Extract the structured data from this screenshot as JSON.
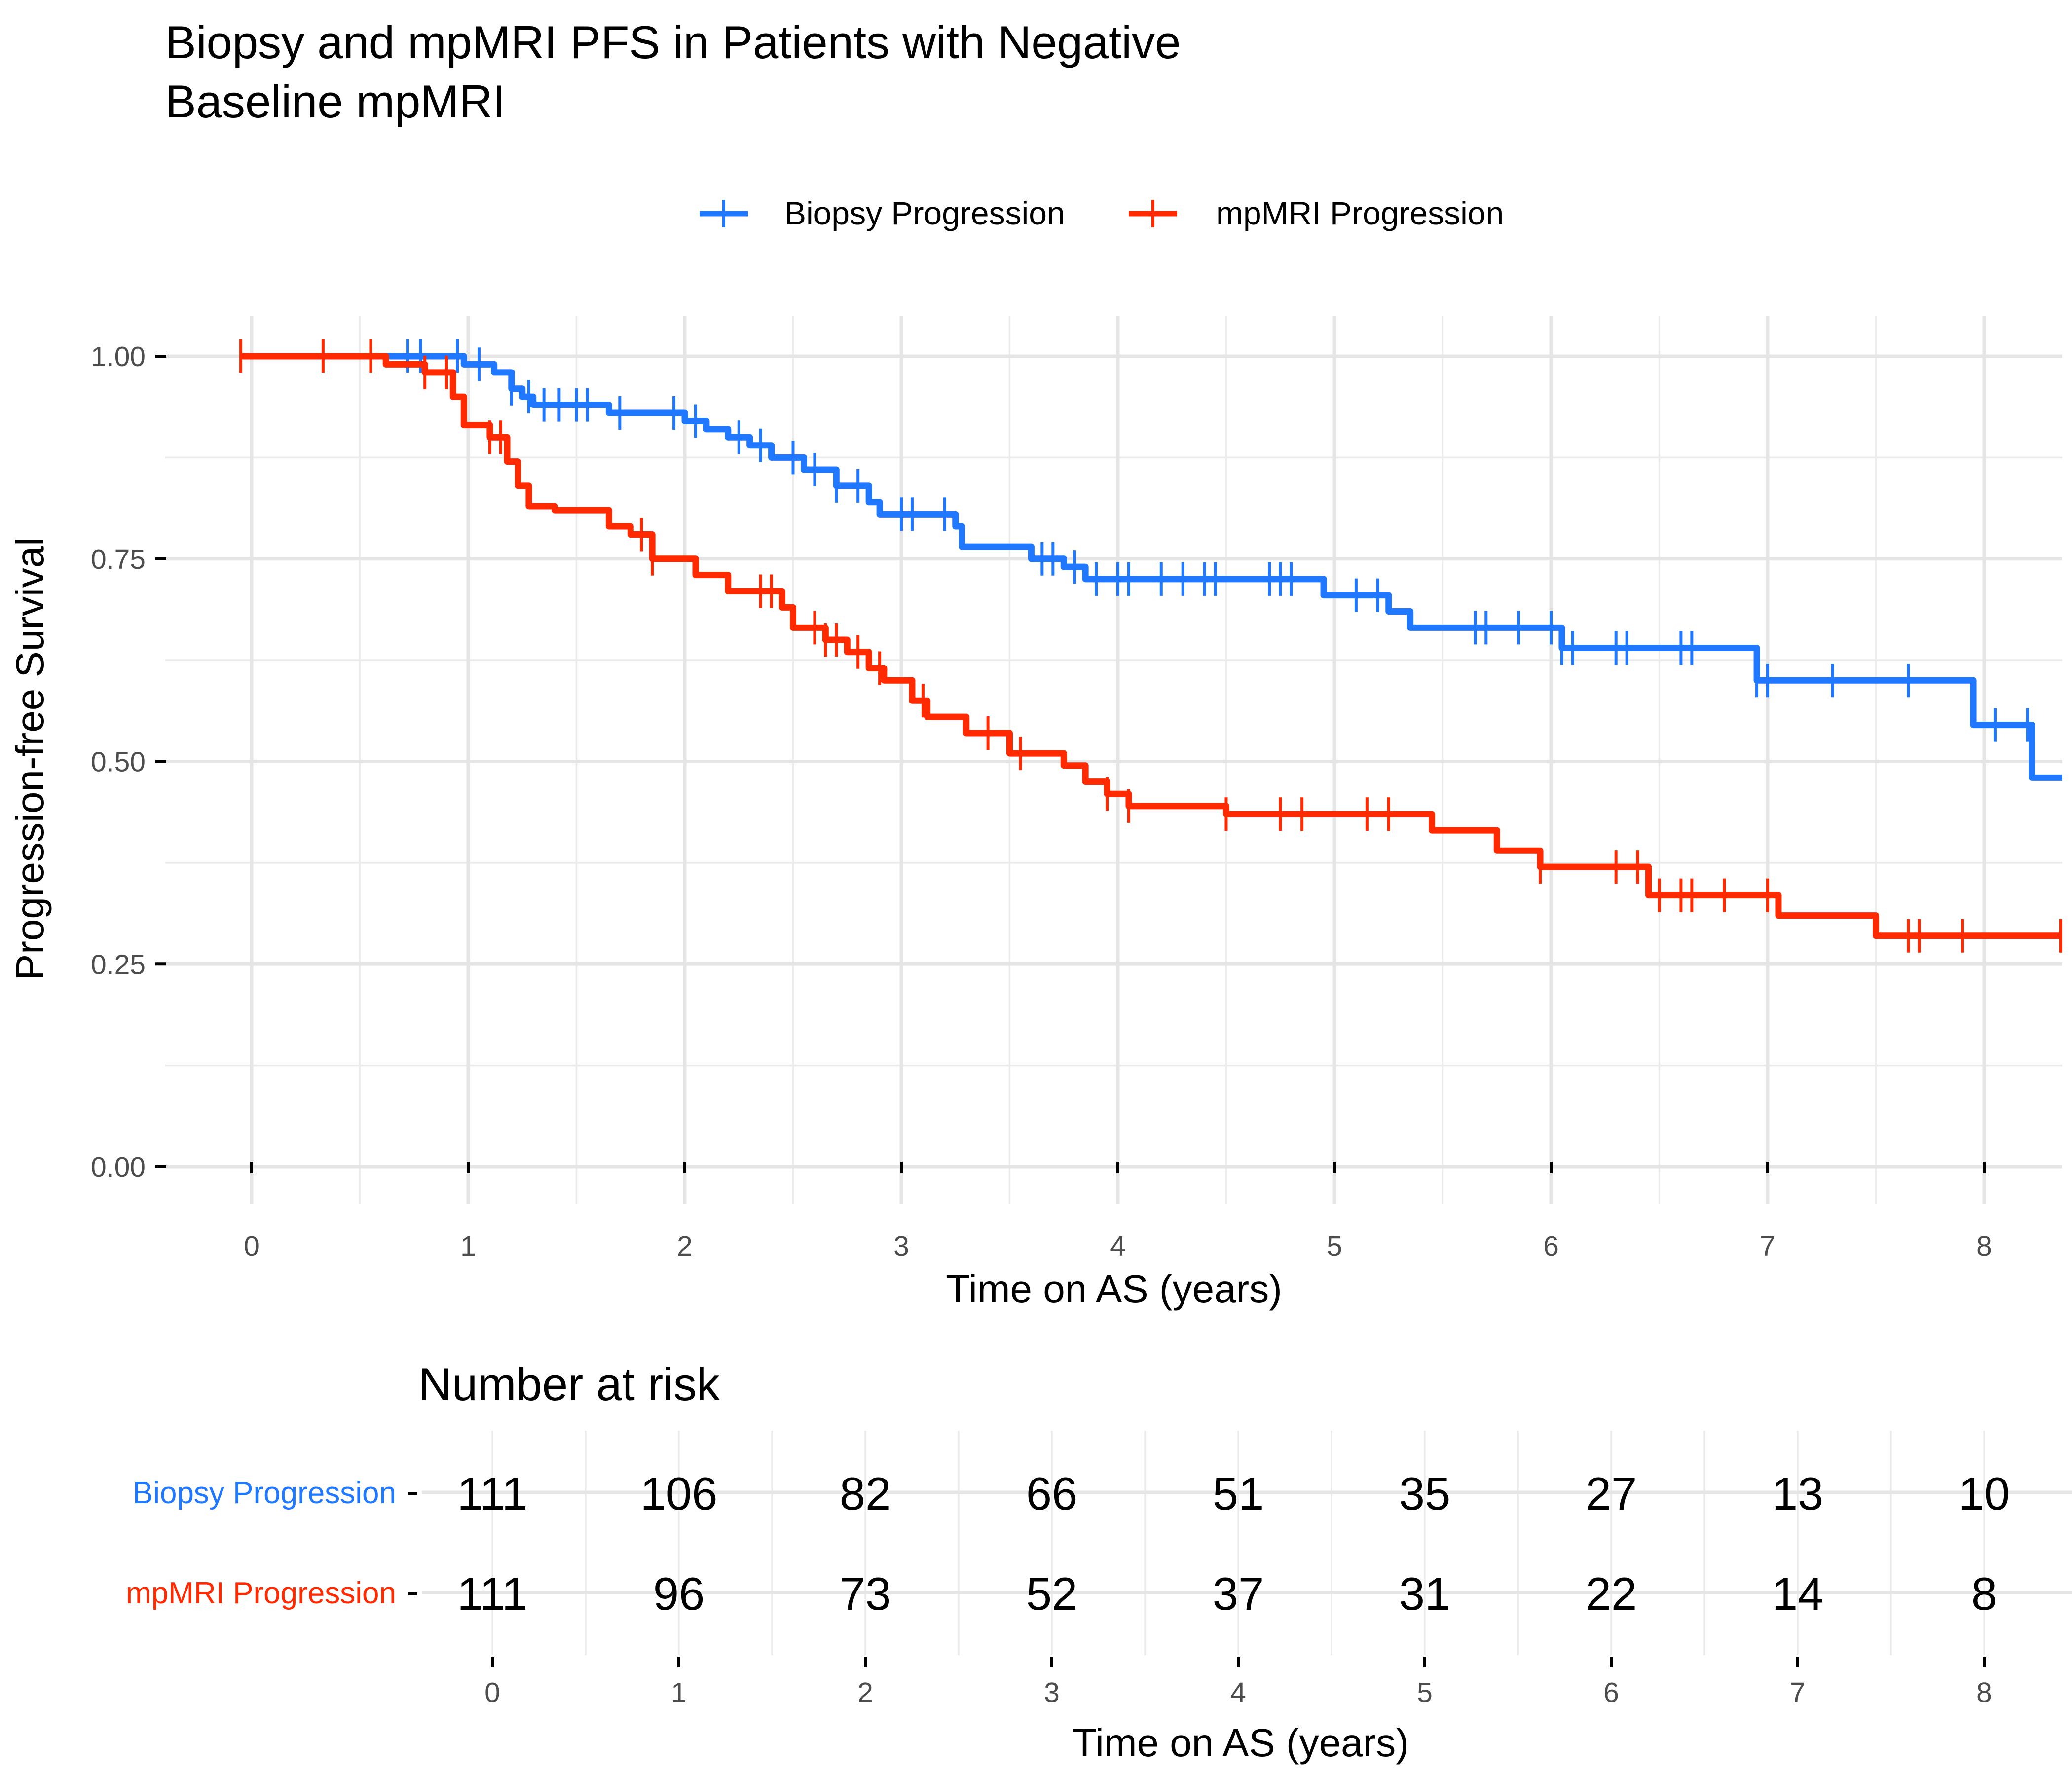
{
  "chart_data": {
    "type": "line",
    "subtype": "kaplan-meier-step",
    "title": "Biopsy and mpMRI PFS in Patients with Negative Baseline mpMRI",
    "title_lines": [
      "Biopsy and mpMRI PFS in Patients with Negative",
      "Baseline mpMRI"
    ],
    "xlabel": "Time on AS (years)",
    "ylabel": "Progression-free Survival",
    "xlim": [
      -0.1,
      8.4
    ],
    "ylim": [
      0,
      1
    ],
    "xticks": [
      0,
      1,
      2,
      3,
      4,
      5,
      6,
      7,
      8
    ],
    "xtick_labels": [
      "0",
      "1",
      "2",
      "3",
      "4",
      "5",
      "6",
      "7",
      "8"
    ],
    "yticks": [
      0,
      0.25,
      0.5,
      0.75,
      1.0
    ],
    "ytick_labels": [
      "0.00",
      "0.25",
      "0.50",
      "0.75",
      "1.00"
    ],
    "grid": true,
    "legend_position": "top",
    "series": [
      {
        "name": "Biopsy Progression",
        "color": "#1f78ff",
        "steps": [
          [
            0,
            1.0
          ],
          [
            0.98,
            0.99
          ],
          [
            1.12,
            0.98
          ],
          [
            1.2,
            0.96
          ],
          [
            1.25,
            0.95
          ],
          [
            1.3,
            0.94
          ],
          [
            1.65,
            0.93
          ],
          [
            2.0,
            0.92
          ],
          [
            2.1,
            0.91
          ],
          [
            2.2,
            0.9
          ],
          [
            2.3,
            0.89
          ],
          [
            2.4,
            0.875
          ],
          [
            2.55,
            0.86
          ],
          [
            2.7,
            0.84
          ],
          [
            2.85,
            0.82
          ],
          [
            2.9,
            0.805
          ],
          [
            3.25,
            0.79
          ],
          [
            3.28,
            0.765
          ],
          [
            3.6,
            0.75
          ],
          [
            3.75,
            0.74
          ],
          [
            3.85,
            0.725
          ],
          [
            4.95,
            0.705
          ],
          [
            5.25,
            0.685
          ],
          [
            5.35,
            0.665
          ],
          [
            6.05,
            0.64
          ],
          [
            6.95,
            0.6
          ],
          [
            7.95,
            0.545
          ],
          [
            8.22,
            0.48
          ]
        ],
        "censor_times": [
          0.72,
          0.78,
          0.95,
          1.05,
          1.2,
          1.28,
          1.35,
          1.42,
          1.5,
          1.55,
          1.7,
          1.95,
          2.05,
          2.25,
          2.35,
          2.5,
          2.6,
          2.7,
          2.8,
          3.0,
          3.05,
          3.2,
          3.65,
          3.7,
          3.8,
          3.9,
          4.0,
          4.05,
          4.2,
          4.3,
          4.4,
          4.45,
          4.7,
          4.75,
          4.8,
          5.1,
          5.2,
          5.65,
          5.7,
          5.85,
          6.0,
          6.05,
          6.1,
          6.3,
          6.35,
          6.6,
          6.65,
          6.95,
          7.0,
          7.3,
          7.65,
          8.05,
          8.2
        ],
        "end_time": 8.4
      },
      {
        "name": "mpMRI Progression",
        "color": "#ff2a00",
        "steps": [
          [
            0,
            1.0
          ],
          [
            0.62,
            0.99
          ],
          [
            0.8,
            0.98
          ],
          [
            0.93,
            0.95
          ],
          [
            0.98,
            0.915
          ],
          [
            1.1,
            0.9
          ],
          [
            1.18,
            0.87
          ],
          [
            1.23,
            0.84
          ],
          [
            1.28,
            0.815
          ],
          [
            1.4,
            0.81
          ],
          [
            1.65,
            0.79
          ],
          [
            1.75,
            0.78
          ],
          [
            1.85,
            0.75
          ],
          [
            2.05,
            0.73
          ],
          [
            2.2,
            0.71
          ],
          [
            2.45,
            0.69
          ],
          [
            2.5,
            0.665
          ],
          [
            2.65,
            0.65
          ],
          [
            2.75,
            0.635
          ],
          [
            2.85,
            0.615
          ],
          [
            2.92,
            0.6
          ],
          [
            3.05,
            0.575
          ],
          [
            3.12,
            0.555
          ],
          [
            3.3,
            0.535
          ],
          [
            3.5,
            0.51
          ],
          [
            3.75,
            0.495
          ],
          [
            3.85,
            0.475
          ],
          [
            3.95,
            0.46
          ],
          [
            4.05,
            0.445
          ],
          [
            4.5,
            0.435
          ],
          [
            5.45,
            0.415
          ],
          [
            5.75,
            0.39
          ],
          [
            5.95,
            0.37
          ],
          [
            6.45,
            0.335
          ],
          [
            7.05,
            0.31
          ],
          [
            7.5,
            0.285
          ]
        ],
        "censor_times": [
          -0.05,
          0.33,
          0.55,
          0.8,
          0.9,
          1.1,
          1.15,
          1.8,
          1.85,
          2.35,
          2.4,
          2.6,
          2.65,
          2.7,
          2.8,
          2.9,
          3.1,
          3.4,
          3.55,
          3.95,
          4.05,
          4.5,
          4.75,
          4.85,
          5.15,
          5.25,
          5.95,
          6.3,
          6.4,
          6.5,
          6.6,
          6.65,
          6.8,
          7.0,
          7.65,
          7.7,
          7.9,
          8.4
        ],
        "end_time": 8.4
      }
    ],
    "risk_table": {
      "title": "Number at risk",
      "xlabel": "Time on AS (years)",
      "times": [
        0,
        1,
        2,
        3,
        4,
        5,
        6,
        7,
        8
      ],
      "time_labels": [
        "0",
        "1",
        "2",
        "3",
        "4",
        "5",
        "6",
        "7",
        "8"
      ],
      "rows": [
        {
          "label": "Biopsy Progression",
          "color": "#1f78ff",
          "values": [
            "111",
            "106",
            "82",
            "66",
            "51",
            "35",
            "27",
            "13",
            "10"
          ]
        },
        {
          "label": "mpMRI Progression",
          "color": "#ff2a00",
          "values": [
            "111",
            "96",
            "73",
            "52",
            "37",
            "31",
            "22",
            "14",
            "8"
          ]
        }
      ]
    }
  }
}
